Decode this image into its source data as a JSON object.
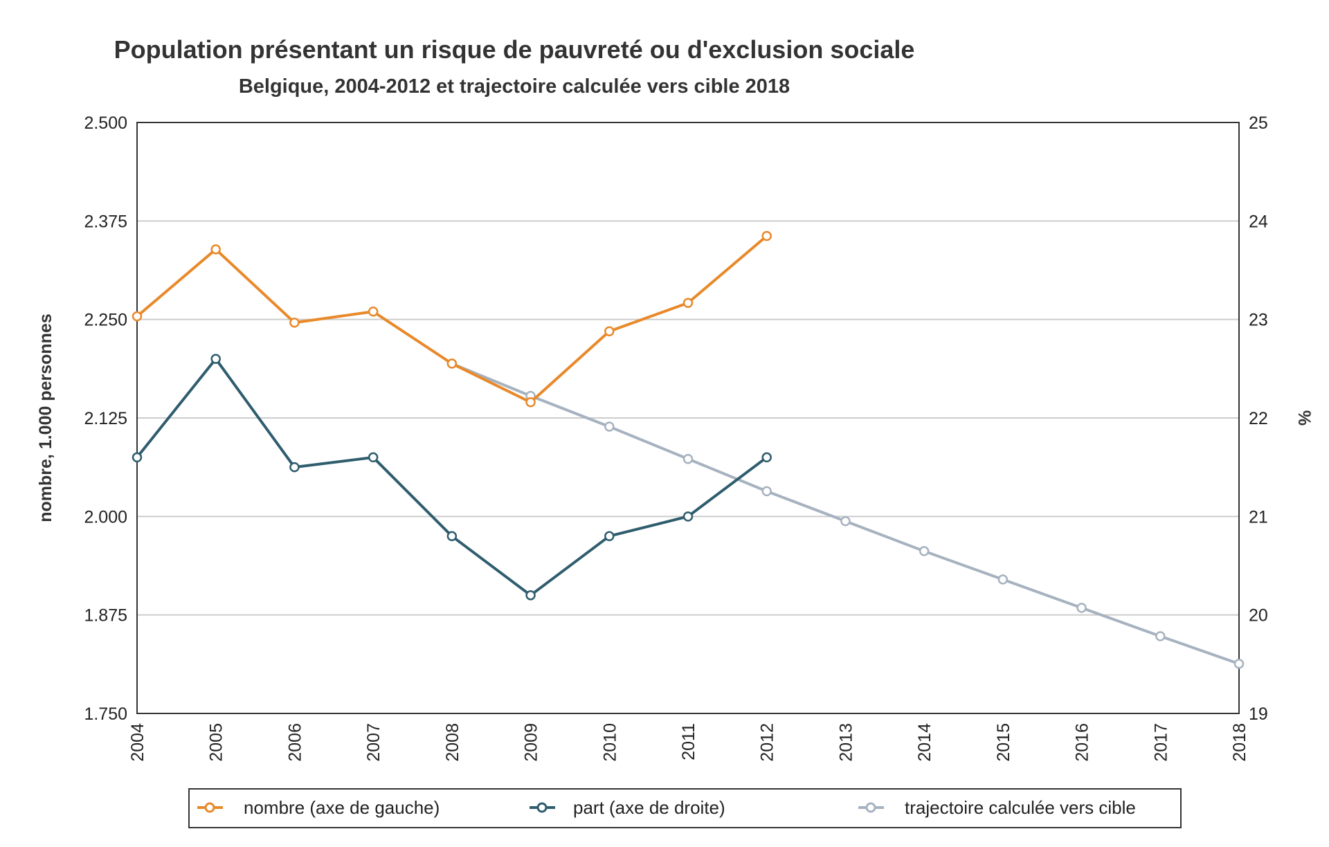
{
  "chart_data": {
    "type": "line",
    "title": "Population présentant un risque de pauvreté ou d'exclusion sociale",
    "subtitle": "Belgique, 2004-2012 et trajectoire calculée vers cible 2018",
    "x_categories": [
      "2004",
      "2005",
      "2006",
      "2007",
      "2008",
      "2009",
      "2010",
      "2011",
      "2012",
      "2013",
      "2014",
      "2015",
      "2016",
      "2017",
      "2018"
    ],
    "y_left": {
      "label": "nombre, 1.000 personnes",
      "range": [
        1750,
        2500
      ],
      "ticks": [
        1750,
        1875,
        2000,
        2125,
        2250,
        2375,
        2500
      ],
      "tick_labels": [
        "1.750",
        "1.875",
        "2.000",
        "2.125",
        "2.250",
        "2.375",
        "2.500"
      ]
    },
    "y_right": {
      "label": "%",
      "range": [
        19,
        25
      ],
      "ticks": [
        19,
        20,
        21,
        22,
        23,
        24,
        25
      ],
      "tick_labels": [
        "19",
        "20",
        "21",
        "22",
        "23",
        "24",
        "25"
      ]
    },
    "grid": true,
    "legend_position": "bottom",
    "series": [
      {
        "name": "nombre (axe de gauche)",
        "axis": "left",
        "color": "#e8892a",
        "x": [
          "2004",
          "2005",
          "2006",
          "2007",
          "2008",
          "2009",
          "2010",
          "2011",
          "2012"
        ],
        "values": [
          2254,
          2339,
          2246,
          2260,
          2194,
          2145,
          2235,
          2271,
          2356
        ]
      },
      {
        "name": "part (axe de droite)",
        "axis": "right",
        "color": "#2f5d6e",
        "x": [
          "2004",
          "2005",
          "2006",
          "2007",
          "2008",
          "2009",
          "2010",
          "2011",
          "2012"
        ],
        "values": [
          21.6,
          22.6,
          21.5,
          21.6,
          20.8,
          20.2,
          20.8,
          21.0,
          21.6
        ]
      },
      {
        "name": "trajectoire calculée vers cible",
        "axis": "left",
        "color": "#a6b2c0",
        "x": [
          "2008",
          "2009",
          "2010",
          "2011",
          "2012",
          "2013",
          "2014",
          "2015",
          "2016",
          "2017",
          "2018"
        ],
        "values": [
          2194,
          2153,
          2114,
          2073,
          2032,
          1994,
          1956,
          1920,
          1884,
          1848,
          1813
        ]
      }
    ]
  }
}
